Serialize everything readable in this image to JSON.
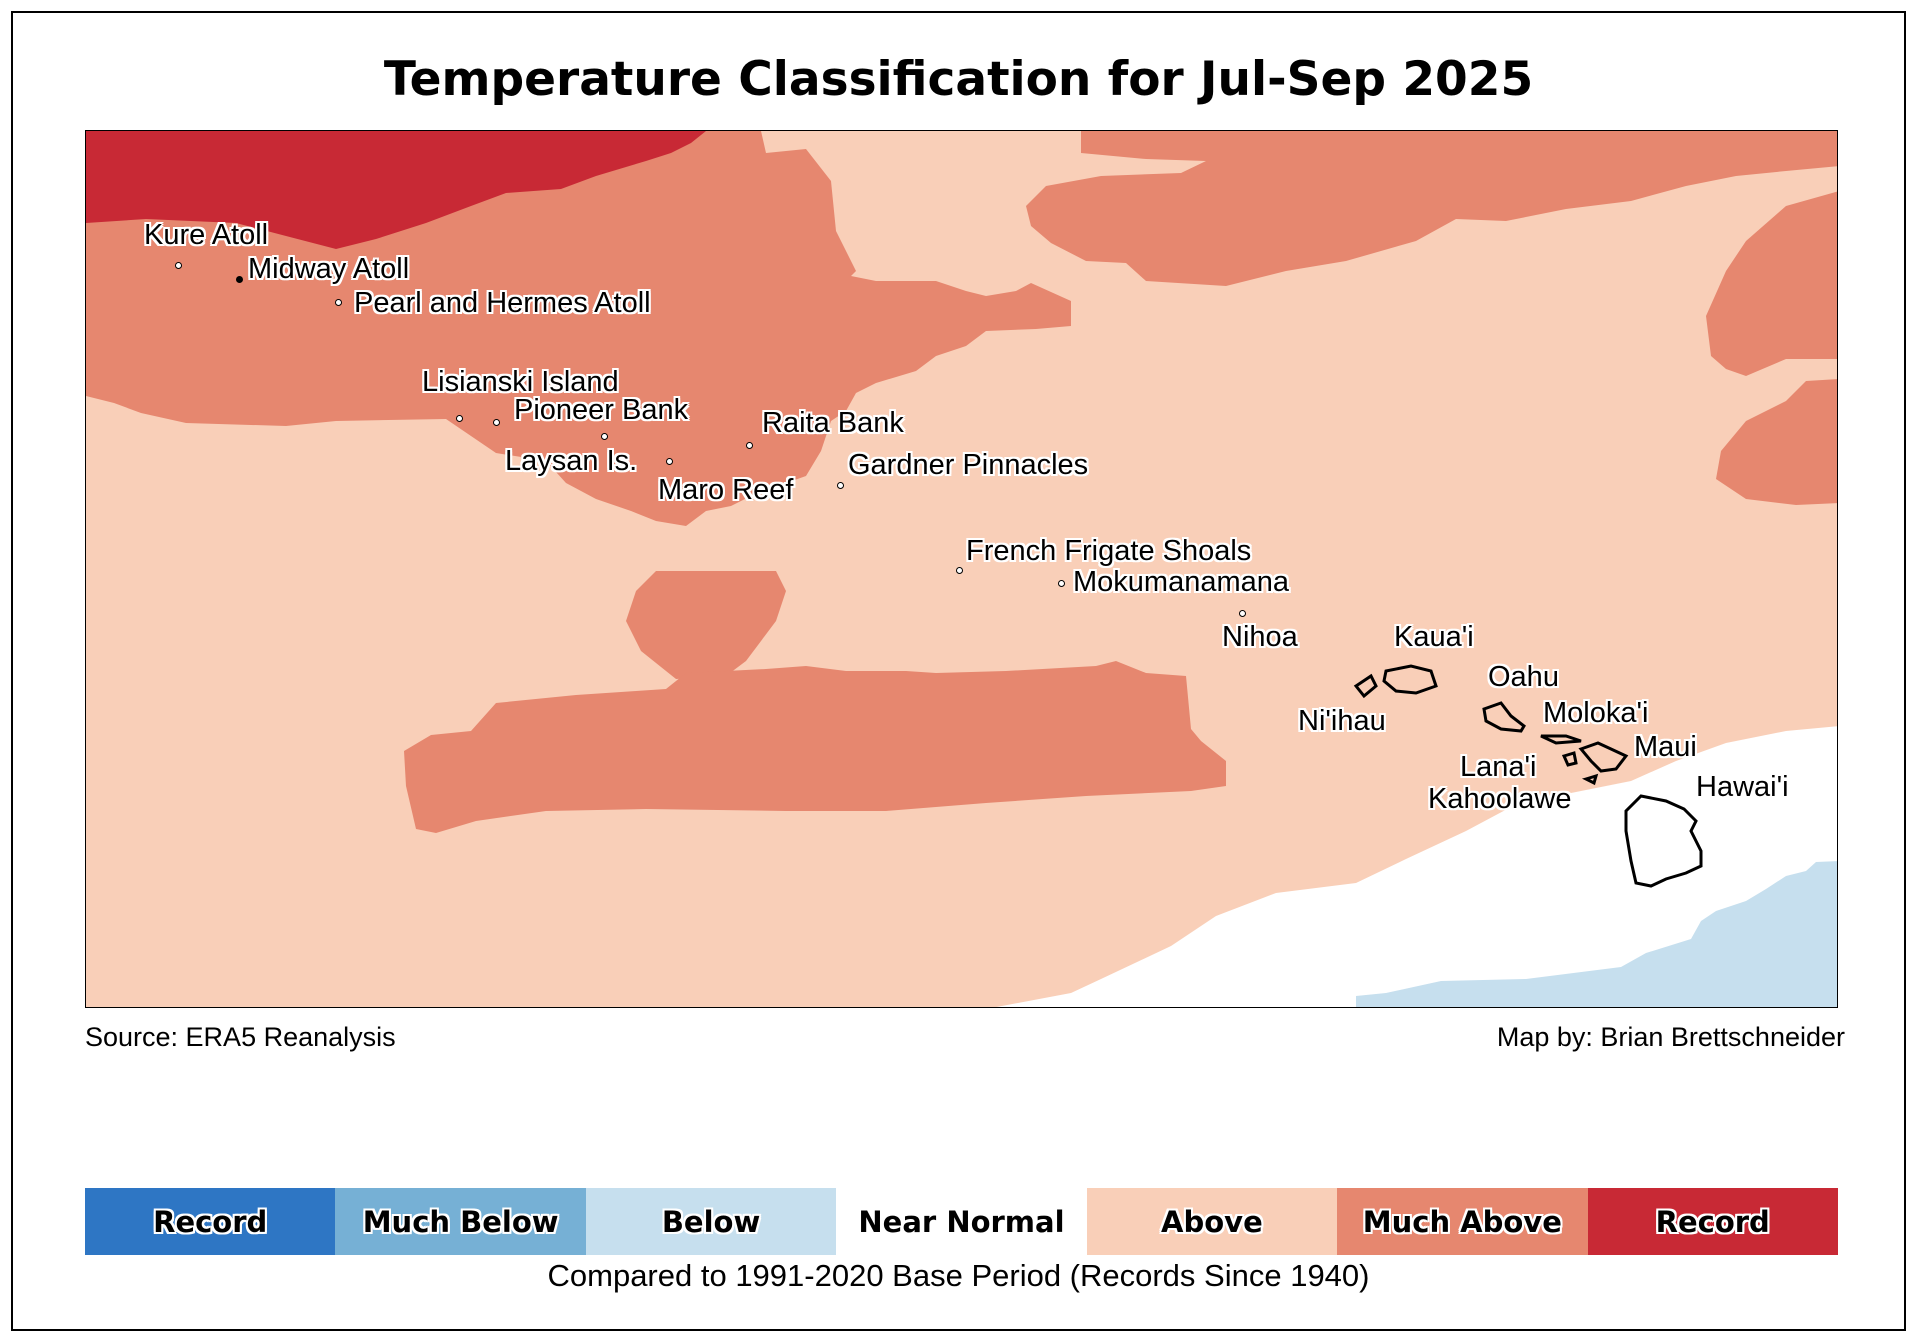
{
  "title": "Temperature Classification for Jul-Sep 2025",
  "source": "Source: ERA5 Reanalysis",
  "credit": "Map by: Brian Brettschneider",
  "caption": "Compared to 1991-2020 Base Period   (Records Since 1940)",
  "colors": {
    "record_below": "#2e76c4",
    "much_below": "#76b0d5",
    "below": "#c6dfee",
    "near_normal": "#ffffff",
    "above": "#f9cfb8",
    "much_above": "#e6876f",
    "record_above": "#c82935"
  },
  "legend": [
    {
      "label": "Record",
      "color": "#2e76c4"
    },
    {
      "label": "Much Below",
      "color": "#76b0d5"
    },
    {
      "label": "Below",
      "color": "#c6dfee"
    },
    {
      "label": "Near Normal",
      "color": "#ffffff"
    },
    {
      "label": "Above",
      "color": "#f9cfb8"
    },
    {
      "label": "Much Above",
      "color": "#e6876f"
    },
    {
      "label": "Record",
      "color": "#c82935"
    }
  ],
  "places": [
    "Kure Atoll",
    "Midway Atoll",
    "Pearl and Hermes Atoll",
    "Lisianski Island",
    "Pioneer Bank",
    "Raita Bank",
    "Laysan Is.",
    "Maro Reef",
    "Gardner Pinnacles",
    "French Frigate Shoals",
    "Mokumanamana",
    "Nihoa",
    "Kaua'i",
    "Ni'ihau",
    "Oahu",
    "Moloka'i",
    "Maui",
    "Lana'i",
    "Kahoolawe",
    "Hawai'i"
  ]
}
